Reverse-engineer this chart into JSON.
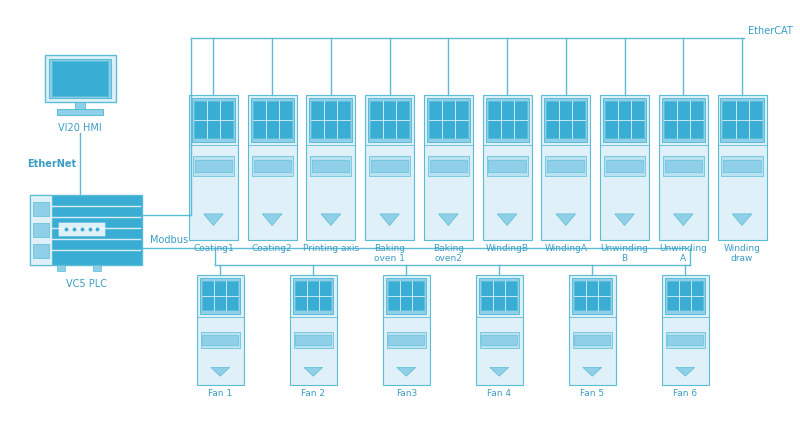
{
  "bg_color": "#ffffff",
  "line_color": "#5bbcd6",
  "border_color": "#5bbcd6",
  "fill_light": "#dff0f8",
  "fill_mid": "#8fd0e8",
  "fill_dark": "#3aadd4",
  "fill_body": "#b8e2f2",
  "text_color": "#3a9dc4",
  "hmi_label": "VI20 HMI",
  "plc_label": "VC5 PLC",
  "ethernet_label": "EtherNet",
  "ethercat_label": "EtherCAT",
  "modbus_label": "Modbus",
  "top_drives": [
    "Coating1",
    "Coating2",
    "Printing axis",
    "Baking\noven 1",
    "Baking\noven2",
    "WindingB",
    "WindingA",
    "Unwinding\nB",
    "Unwinding\nA",
    "Winding\ndraw"
  ],
  "bottom_drives": [
    "Fan 1",
    "Fan 2",
    "Fan3",
    "Fan 4",
    "Fan 5",
    "Fan 6"
  ]
}
